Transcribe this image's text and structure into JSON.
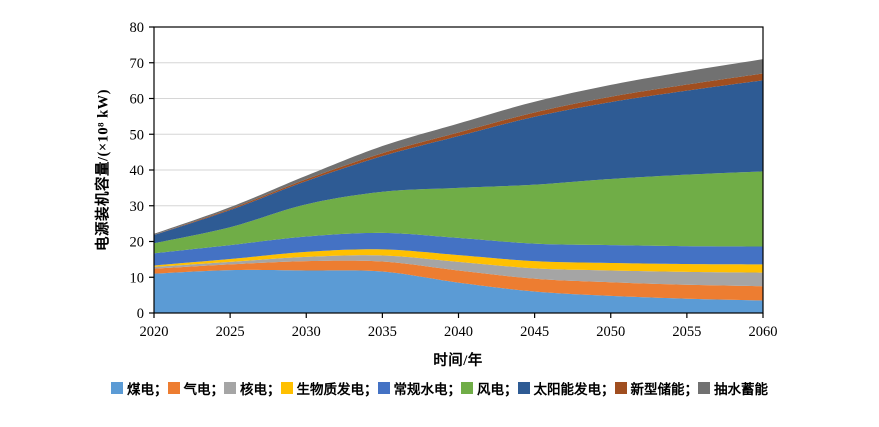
{
  "figure": {
    "x_axis_title": "时间/年",
    "y_axis_title": "电源装机容量/(×10⁸ kW)"
  },
  "legend": {
    "separator": "；",
    "items": [
      {
        "key": "coal",
        "label": "煤电",
        "color": "#5B9BD5"
      },
      {
        "key": "gas",
        "label": "气电",
        "color": "#ED7D31"
      },
      {
        "key": "nuclear",
        "label": "核电",
        "color": "#A5A5A5"
      },
      {
        "key": "biomass",
        "label": "生物质发电",
        "color": "#FFC000"
      },
      {
        "key": "conventional-hydro",
        "label": "常规水电",
        "color": "#4472C4"
      },
      {
        "key": "wind",
        "label": "风电",
        "color": "#70AD47"
      },
      {
        "key": "solar",
        "label": "太阳能发电",
        "color": "#2E5B94"
      },
      {
        "key": "new-energy-storage",
        "label": "新型储能",
        "color": "#A04E20"
      },
      {
        "key": "pumped-storage",
        "label": "抽水蓄能",
        "color": "#717171"
      }
    ]
  },
  "chart_data": {
    "type": "area",
    "stacked": true,
    "title": "",
    "xlabel": "时间/年",
    "ylabel": "电源装机容量/(×10⁸ kW)",
    "x": [
      2020,
      2025,
      2030,
      2035,
      2040,
      2045,
      2050,
      2055,
      2060
    ],
    "x_ticks": [
      2020,
      2025,
      2030,
      2035,
      2040,
      2045,
      2050,
      2055,
      2060
    ],
    "y_ticks": [
      0,
      10,
      20,
      30,
      40,
      50,
      60,
      70,
      80
    ],
    "xlim": [
      2020,
      2060
    ],
    "ylim": [
      0,
      80
    ],
    "grid": true,
    "legend_position": "bottom",
    "series": [
      {
        "key": "coal",
        "name": "煤电",
        "color": "#5B9BD5",
        "values": [
          11.0,
          12.0,
          11.9,
          11.6,
          8.5,
          6.0,
          4.8,
          4.0,
          3.5
        ]
      },
      {
        "key": "gas",
        "name": "气电",
        "color": "#ED7D31",
        "values": [
          1.4,
          1.6,
          2.6,
          2.8,
          3.4,
          3.6,
          3.8,
          3.9,
          4.0
        ]
      },
      {
        "key": "nuclear",
        "name": "核电",
        "color": "#A5A5A5",
        "values": [
          0.5,
          0.7,
          1.2,
          1.7,
          2.4,
          2.9,
          3.3,
          3.6,
          3.8
        ]
      },
      {
        "key": "biomass",
        "name": "生物质发电",
        "color": "#FFC000",
        "values": [
          0.4,
          0.8,
          1.4,
          1.7,
          1.9,
          2.0,
          2.1,
          2.2,
          2.3
        ]
      },
      {
        "key": "conventional-hydro",
        "name": "常规水电",
        "color": "#4472C4",
        "values": [
          3.4,
          3.9,
          4.3,
          4.6,
          4.8,
          4.9,
          5.0,
          5.0,
          5.0
        ]
      },
      {
        "key": "wind",
        "name": "风电",
        "color": "#70AD47",
        "values": [
          2.8,
          5.0,
          9.0,
          11.5,
          14.0,
          16.5,
          18.5,
          20.0,
          21.0
        ]
      },
      {
        "key": "solar",
        "name": "太阳能发电",
        "color": "#2E5B94",
        "values": [
          2.3,
          4.8,
          6.5,
          10.0,
          14.5,
          19.0,
          21.5,
          23.5,
          25.5
        ]
      },
      {
        "key": "new-energy-storage",
        "name": "新型储能",
        "color": "#A04E20",
        "values": [
          0.05,
          0.3,
          0.5,
          0.8,
          1.0,
          1.2,
          1.5,
          1.7,
          1.9
        ]
      },
      {
        "key": "pumped-storage",
        "name": "抽水蓄能",
        "color": "#717171",
        "values": [
          0.3,
          0.5,
          1.0,
          2.0,
          2.5,
          3.0,
          3.3,
          3.7,
          4.0
        ]
      }
    ]
  }
}
